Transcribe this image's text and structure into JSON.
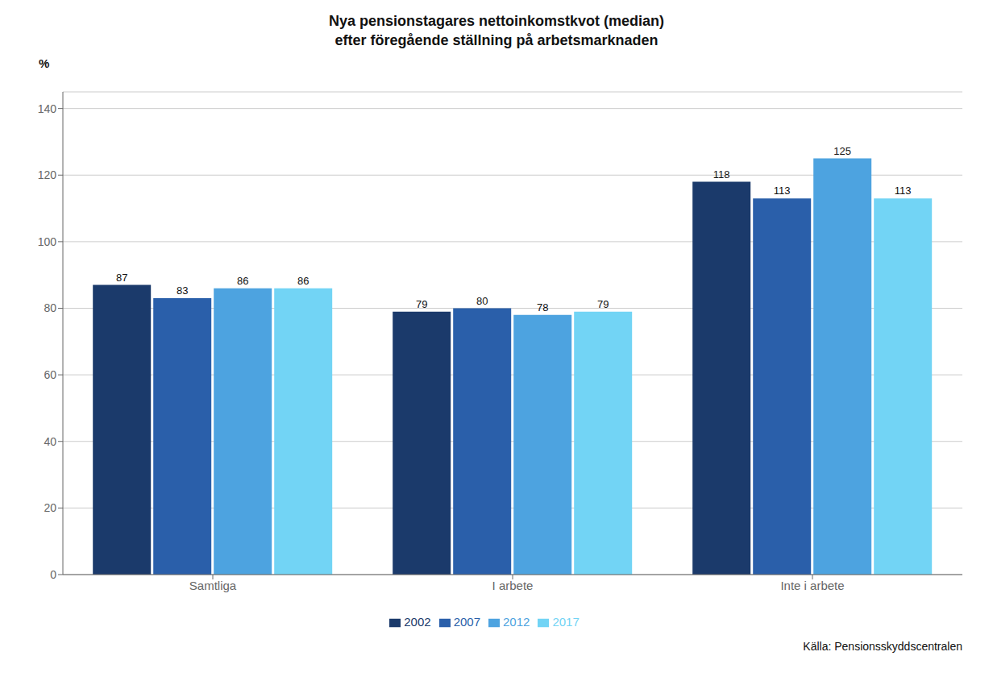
{
  "chart_data": {
    "type": "bar",
    "title": "Nya pensionstagares nettoinkomstkvot (median)",
    "subtitle": "efter föregående ställning på arbetsmarknaden",
    "ylabel": "%",
    "categories": [
      "Samtliga",
      "I arbete",
      "Inte i arbete"
    ],
    "series": [
      {
        "name": "2002",
        "color": "#1b3a6b",
        "values": [
          87,
          79,
          118
        ]
      },
      {
        "name": "2007",
        "color": "#2a5faa",
        "values": [
          83,
          80,
          113
        ]
      },
      {
        "name": "2012",
        "color": "#4da3e0",
        "values": [
          86,
          78,
          125
        ]
      },
      {
        "name": "2017",
        "color": "#72d4f5",
        "values": [
          86,
          79,
          113
        ]
      }
    ],
    "ylim": [
      0,
      145
    ],
    "yticks": [
      0,
      20,
      40,
      60,
      80,
      100,
      120,
      140
    ],
    "grid": true,
    "legend": "bottom",
    "data_labels": true,
    "annotations": [
      "Källa: Pensionsskyddscentralen"
    ]
  }
}
